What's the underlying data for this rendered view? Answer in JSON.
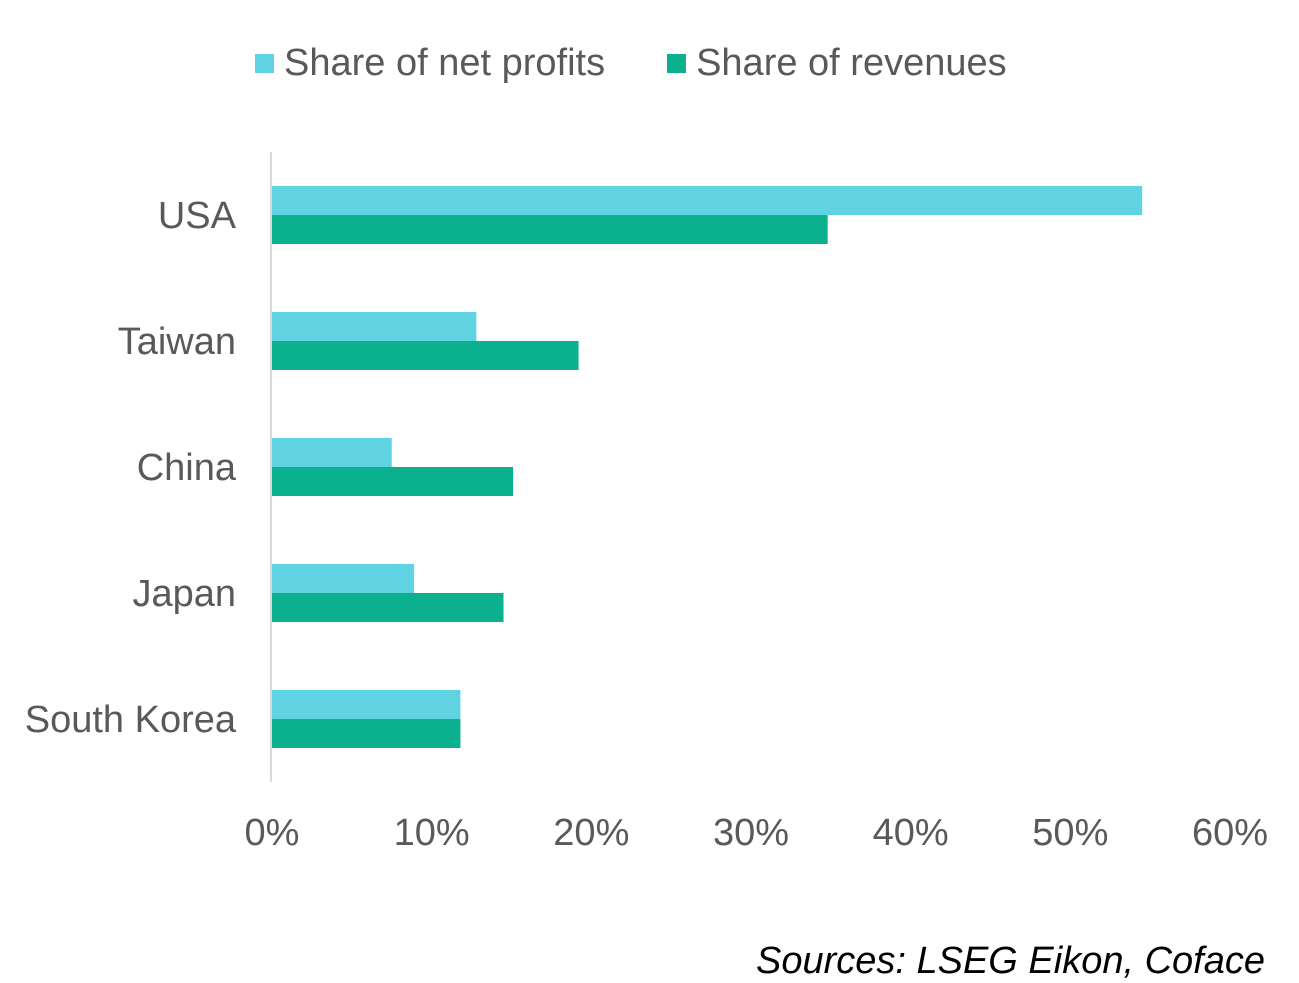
{
  "chart_data": {
    "type": "bar",
    "orientation": "horizontal",
    "categories": [
      "USA",
      "Taiwan",
      "China",
      "Japan",
      "South Korea"
    ],
    "series": [
      {
        "name": "Share of net profits",
        "color": "#5fd3e1",
        "values": [
          54.5,
          12.8,
          7.5,
          8.9,
          11.8
        ]
      },
      {
        "name": "Share of revenues",
        "color": "#0bb08e",
        "values": [
          34.8,
          19.2,
          15.1,
          14.5,
          11.8
        ]
      }
    ],
    "xlim": [
      0,
      60
    ],
    "xticks": [
      "0%",
      "10%",
      "20%",
      "30%",
      "40%",
      "50%",
      "60%"
    ],
    "grid": false,
    "legend_position": "top"
  },
  "source_note": "Sources: LSEG Eikon, Coface"
}
